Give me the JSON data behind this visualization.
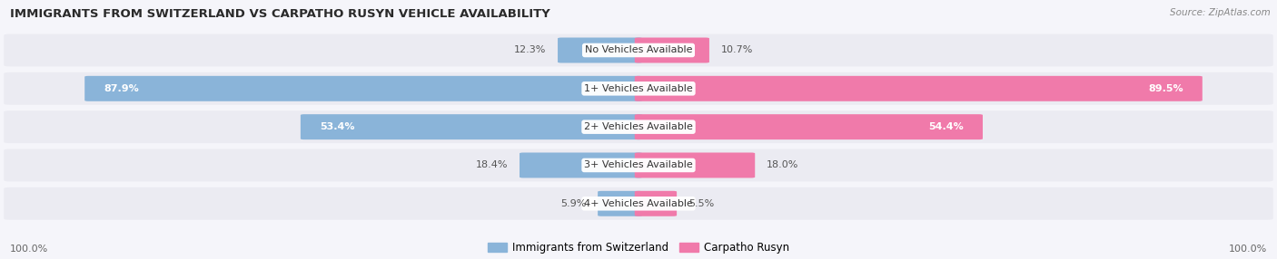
{
  "title": "IMMIGRANTS FROM SWITZERLAND VS CARPATHO RUSYN VEHICLE AVAILABILITY",
  "source": "Source: ZipAtlas.com",
  "categories": [
    "No Vehicles Available",
    "1+ Vehicles Available",
    "2+ Vehicles Available",
    "3+ Vehicles Available",
    "4+ Vehicles Available"
  ],
  "switzerland_values": [
    12.3,
    87.9,
    53.4,
    18.4,
    5.9
  ],
  "carpatho_values": [
    10.7,
    89.5,
    54.4,
    18.0,
    5.5
  ],
  "switzerland_color": "#8ab4d9",
  "carpatho_color": "#f07aaa",
  "row_bg_color": "#ebebf2",
  "fig_bg_color": "#f5f5fa",
  "title_color": "#2a2a2a",
  "value_label_color": "#555555",
  "axis_label": "100.0%",
  "legend_switzerland": "Immigrants from Switzerland",
  "legend_carpatho": "Carpatho Rusyn",
  "figsize": [
    14.06,
    2.86
  ],
  "dpi": 100
}
